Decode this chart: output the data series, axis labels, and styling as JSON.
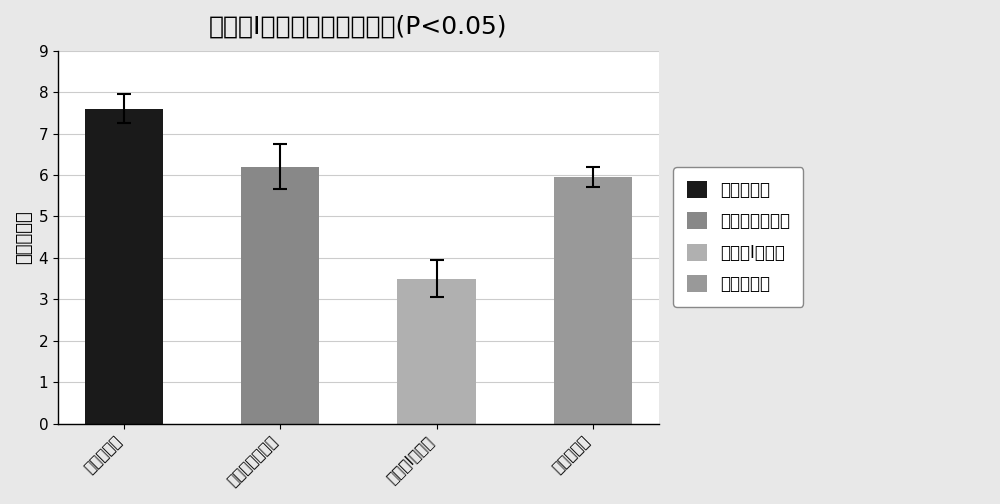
{
  "title": "化合物Ⅰ对小鼠脾指数的影响(P<0.05)",
  "ylabel": "小鼠脾指数",
  "categories": [
    "基质对照组",
    "青蒿琥酯对照组",
    "化合物Ⅰ对照组",
    "正常对照组"
  ],
  "values": [
    7.6,
    6.2,
    3.5,
    5.95
  ],
  "errors": [
    0.35,
    0.55,
    0.45,
    0.25
  ],
  "bar_colors": [
    "#1a1a1a",
    "#888888",
    "#b0b0b0",
    "#999999"
  ],
  "legend_labels": [
    "基质对照组",
    "青蒿琥酯对照组",
    "化合物Ⅰ对照组",
    "正常对照组"
  ],
  "legend_colors": [
    "#1a1a1a",
    "#888888",
    "#b0b0b0",
    "#999999"
  ],
  "ylim": [
    0,
    9
  ],
  "yticks": [
    0,
    1,
    2,
    3,
    4,
    5,
    6,
    7,
    8,
    9
  ],
  "background_color": "#e8e8e8",
  "plot_bg_color": "#ffffff",
  "title_fontsize": 18,
  "axis_label_fontsize": 13,
  "tick_fontsize": 11,
  "legend_fontsize": 12
}
